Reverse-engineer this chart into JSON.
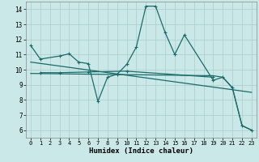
{
  "bg_color": "#cbe8e8",
  "grid_color": "#b0d0d0",
  "line_color": "#1a6b6b",
  "xlabel": "Humidex (Indice chaleur)",
  "ylim": [
    5.5,
    14.5
  ],
  "xlim": [
    -0.5,
    23.5
  ],
  "yticks": [
    6,
    7,
    8,
    9,
    10,
    11,
    12,
    13,
    14
  ],
  "xticks": [
    0,
    1,
    2,
    3,
    4,
    5,
    6,
    7,
    8,
    9,
    10,
    11,
    12,
    13,
    14,
    15,
    16,
    17,
    18,
    19,
    20,
    21,
    22,
    23
  ],
  "series1_x": [
    0,
    1,
    3,
    4,
    5,
    6,
    7,
    8,
    9,
    10,
    11,
    12,
    13,
    14,
    15,
    16,
    19,
    20,
    21,
    22,
    23
  ],
  "series1_y": [
    11.6,
    10.7,
    10.9,
    11.05,
    10.5,
    10.4,
    7.9,
    9.5,
    9.7,
    10.35,
    11.5,
    14.2,
    14.2,
    12.45,
    11.0,
    12.3,
    9.3,
    9.5,
    8.8,
    6.3,
    6.0
  ],
  "series2_x": [
    1,
    3,
    6,
    10,
    19
  ],
  "series2_y": [
    9.8,
    9.8,
    9.85,
    9.9,
    9.5
  ],
  "series3_x": [
    0,
    23
  ],
  "series3_y": [
    10.5,
    8.5
  ],
  "series4_x": [
    0,
    19,
    20,
    21,
    22,
    23
  ],
  "series4_y": [
    9.75,
    9.6,
    9.5,
    8.8,
    6.3,
    6.0
  ]
}
